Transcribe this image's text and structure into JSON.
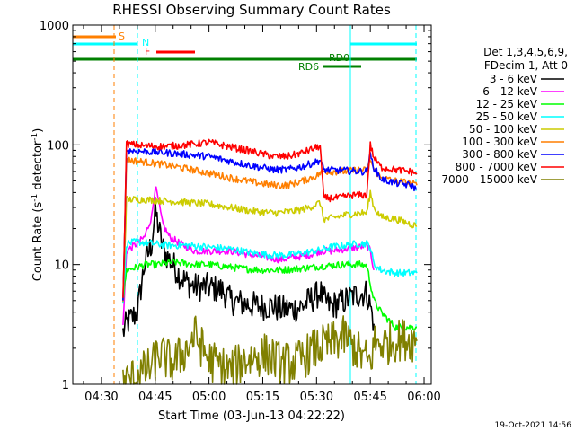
{
  "chart_data": {
    "type": "line",
    "title": "RHESSI Observing Summary Count Rates",
    "xlabel": "Start Time (03-Jun-13 04:22:22)",
    "ylabel": "Count Rate (s",
    "ylabel_sup1": "-1",
    "ylabel_mid": " detector",
    "ylabel_sup2": "-1",
    "ylabel_end": ")",
    "yscale": "log",
    "ylim": [
      1,
      1000
    ],
    "xlim_min": [
      262,
      362
    ],
    "y_ticks": [
      "1",
      "10",
      "100",
      "1000"
    ],
    "x_ticks": [
      {
        "min": 270,
        "label": "04:30"
      },
      {
        "min": 285,
        "label": "04:45"
      },
      {
        "min": 300,
        "label": "05:00"
      },
      {
        "min": 315,
        "label": "05:15"
      },
      {
        "min": 330,
        "label": "05:30"
      },
      {
        "min": 345,
        "label": "05:45"
      },
      {
        "min": 360,
        "label": "06:00"
      }
    ],
    "legend_header": [
      "Det 1,3,4,5,6,9,",
      "FDecim 1, Att 0"
    ],
    "legend_placement": "right",
    "series": [
      {
        "name": "3 - 6 keV",
        "color": "#000000",
        "points": [
          [
            276,
            2.7
          ],
          [
            277,
            3.2
          ],
          [
            280,
            4.0
          ],
          [
            282,
            10
          ],
          [
            284,
            15
          ],
          [
            285,
            28
          ],
          [
            286,
            20
          ],
          [
            287,
            14
          ],
          [
            288,
            12
          ],
          [
            290,
            10
          ],
          [
            292,
            8
          ],
          [
            294,
            7
          ],
          [
            296,
            6.5
          ],
          [
            300,
            6.5
          ],
          [
            304,
            6
          ],
          [
            306,
            5
          ],
          [
            310,
            4.7
          ],
          [
            314,
            4.5
          ],
          [
            318,
            4.5
          ],
          [
            320,
            4.2
          ],
          [
            324,
            4.3
          ],
          [
            326,
            4.5
          ],
          [
            328,
            5
          ],
          [
            330,
            5.5
          ],
          [
            331,
            6
          ],
          [
            332,
            5
          ],
          [
            334,
            4.5
          ],
          [
            338,
            5
          ],
          [
            340,
            5.4
          ],
          [
            342,
            5.7
          ],
          [
            344,
            5.8
          ],
          [
            345,
            4.5
          ],
          [
            346,
            3.2
          ]
        ]
      },
      {
        "name": "6 - 12 keV",
        "color": "#ff00ff",
        "points": [
          [
            276,
            3
          ],
          [
            277,
            13
          ],
          [
            280,
            15
          ],
          [
            282,
            17
          ],
          [
            284,
            25
          ],
          [
            285,
            45
          ],
          [
            286,
            33
          ],
          [
            287,
            22
          ],
          [
            289,
            17
          ],
          [
            292,
            15
          ],
          [
            296,
            13
          ],
          [
            300,
            13
          ],
          [
            306,
            13
          ],
          [
            312,
            12
          ],
          [
            316,
            11.5
          ],
          [
            320,
            11
          ],
          [
            324,
            11.5
          ],
          [
            328,
            12
          ],
          [
            331,
            13
          ],
          [
            334,
            13
          ],
          [
            338,
            13.5
          ],
          [
            342,
            14
          ],
          [
            344,
            14.5
          ],
          [
            345,
            13
          ],
          [
            346,
            9
          ]
        ]
      },
      {
        "name": "12 - 25 keV",
        "color": "#00ff00",
        "points": [
          [
            276,
            5
          ],
          [
            277,
            9
          ],
          [
            280,
            9.5
          ],
          [
            282,
            10
          ],
          [
            286,
            10
          ],
          [
            290,
            10.5
          ],
          [
            296,
            10
          ],
          [
            300,
            10
          ],
          [
            306,
            9.5
          ],
          [
            310,
            9.2
          ],
          [
            316,
            9
          ],
          [
            320,
            9
          ],
          [
            326,
            9.3
          ],
          [
            330,
            9.6
          ],
          [
            334,
            9.8
          ],
          [
            338,
            10
          ],
          [
            342,
            10
          ],
          [
            344,
            9.8
          ],
          [
            345,
            7
          ],
          [
            346,
            5
          ],
          [
            348,
            4
          ],
          [
            352,
            3
          ],
          [
            356,
            3
          ],
          [
            358,
            3
          ]
        ]
      },
      {
        "name": "25 - 50 keV",
        "color": "#00ffff",
        "points": [
          [
            276,
            5
          ],
          [
            277,
            15
          ],
          [
            280,
            15.5
          ],
          [
            284,
            15
          ],
          [
            288,
            14.5
          ],
          [
            294,
            14.5
          ],
          [
            300,
            14
          ],
          [
            306,
            13.5
          ],
          [
            312,
            12.5
          ],
          [
            318,
            12
          ],
          [
            322,
            12
          ],
          [
            326,
            12.5
          ],
          [
            330,
            13
          ],
          [
            334,
            14
          ],
          [
            338,
            14.5
          ],
          [
            342,
            15
          ],
          [
            344,
            15
          ],
          [
            345,
            14
          ],
          [
            346,
            10
          ],
          [
            348,
            9
          ],
          [
            352,
            8.5
          ],
          [
            356,
            8.5
          ],
          [
            358,
            8.5
          ]
        ]
      },
      {
        "name": "50 - 100 keV",
        "color": "#cccc00",
        "points": [
          [
            276,
            5
          ],
          [
            277,
            35
          ],
          [
            282,
            35
          ],
          [
            288,
            34
          ],
          [
            294,
            33
          ],
          [
            300,
            32
          ],
          [
            306,
            30
          ],
          [
            312,
            28
          ],
          [
            318,
            27
          ],
          [
            324,
            28
          ],
          [
            328,
            30
          ],
          [
            331,
            33
          ],
          [
            332,
            24
          ],
          [
            333,
            24
          ],
          [
            338,
            26
          ],
          [
            342,
            27
          ],
          [
            344,
            27
          ],
          [
            345,
            40
          ],
          [
            346,
            30
          ],
          [
            348,
            25
          ],
          [
            352,
            24
          ],
          [
            356,
            22
          ],
          [
            358,
            21
          ]
        ]
      },
      {
        "name": "100 - 300 keV",
        "color": "#ff7f00",
        "points": [
          [
            276,
            5
          ],
          [
            277,
            75
          ],
          [
            282,
            72
          ],
          [
            288,
            68
          ],
          [
            294,
            63
          ],
          [
            300,
            58
          ],
          [
            306,
            53
          ],
          [
            312,
            49
          ],
          [
            318,
            46
          ],
          [
            322,
            46
          ],
          [
            326,
            50
          ],
          [
            330,
            55
          ],
          [
            331,
            58
          ],
          [
            332,
            60
          ],
          [
            338,
            60
          ],
          [
            342,
            62
          ],
          [
            344,
            61
          ],
          [
            345,
            76
          ],
          [
            346,
            62
          ],
          [
            348,
            53
          ],
          [
            352,
            50
          ],
          [
            356,
            48
          ],
          [
            358,
            46
          ]
        ]
      },
      {
        "name": "300 - 800 keV",
        "color": "#0000ff",
        "points": [
          [
            276,
            5
          ],
          [
            277,
            90
          ],
          [
            282,
            88
          ],
          [
            288,
            86
          ],
          [
            294,
            83
          ],
          [
            300,
            80
          ],
          [
            306,
            73
          ],
          [
            312,
            67
          ],
          [
            318,
            62
          ],
          [
            322,
            62
          ],
          [
            326,
            66
          ],
          [
            330,
            72
          ],
          [
            331,
            75
          ],
          [
            332,
            62
          ],
          [
            338,
            61
          ],
          [
            342,
            60
          ],
          [
            344,
            60
          ],
          [
            345,
            82
          ],
          [
            346,
            65
          ],
          [
            348,
            52
          ],
          [
            352,
            48
          ],
          [
            356,
            46
          ],
          [
            358,
            43
          ]
        ]
      },
      {
        "name": "800 - 7000 keV",
        "color": "#ff0000",
        "points": [
          [
            276,
            5
          ],
          [
            277,
            102
          ],
          [
            282,
            98
          ],
          [
            288,
            97
          ],
          [
            294,
            100
          ],
          [
            300,
            105
          ],
          [
            306,
            96
          ],
          [
            312,
            88
          ],
          [
            318,
            80
          ],
          [
            322,
            80
          ],
          [
            326,
            86
          ],
          [
            330,
            95
          ],
          [
            331,
            98
          ],
          [
            332,
            36
          ],
          [
            336,
            36
          ],
          [
            340,
            38
          ],
          [
            344,
            38
          ],
          [
            345,
            100
          ],
          [
            346,
            78
          ],
          [
            348,
            65
          ],
          [
            352,
            62
          ],
          [
            356,
            60
          ],
          [
            358,
            58
          ]
        ]
      },
      {
        "name": "7000 - 15000 keV",
        "color": "#808000",
        "points": [
          [
            276,
            1
          ],
          [
            284,
            1.4
          ],
          [
            286,
            1.8
          ],
          [
            290,
            1.5
          ],
          [
            294,
            2.0
          ],
          [
            296,
            2.6
          ],
          [
            300,
            1.6
          ],
          [
            304,
            1.4
          ],
          [
            306,
            1.3
          ],
          [
            310,
            1.6
          ],
          [
            316,
            1.8
          ],
          [
            320,
            1.5
          ],
          [
            324,
            1.5
          ],
          [
            330,
            2.0
          ],
          [
            334,
            2.2
          ],
          [
            338,
            2.5
          ],
          [
            342,
            1.8
          ],
          [
            345,
            1.5
          ],
          [
            346,
            2.2
          ],
          [
            350,
            2.2
          ],
          [
            354,
            2.4
          ],
          [
            358,
            2.3
          ]
        ]
      }
    ],
    "markers": [
      {
        "label": "S",
        "color": "#ff7f00"
      },
      {
        "label": "N",
        "color": "#00ffff"
      },
      {
        "label": "F",
        "color": "#ff0000"
      },
      {
        "label": "RD0",
        "color": "#008000"
      },
      {
        "label": "RD6",
        "color": "#008000"
      }
    ]
  },
  "footer_date": "19-Oct-2021 14:56"
}
